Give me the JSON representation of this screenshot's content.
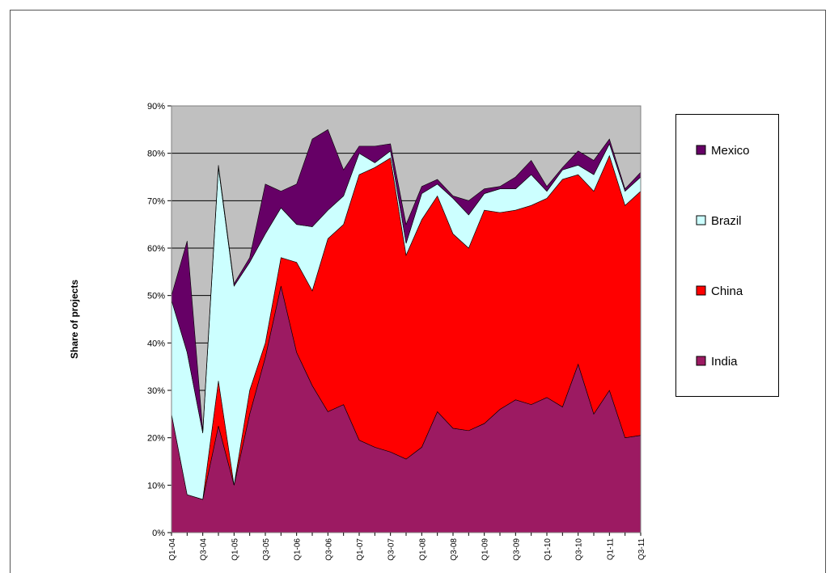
{
  "chart_data": {
    "type": "stacked_area",
    "y_label": "Share of projects",
    "categories": [
      "Q1-04",
      null,
      "Q3-04",
      null,
      "Q1-05",
      null,
      "Q3-05",
      null,
      "Q1-06",
      null,
      "Q3-06",
      null,
      "Q1-07",
      null,
      "Q3-07",
      null,
      "Q1-08",
      null,
      "Q3-08",
      null,
      "Q1-09",
      null,
      "Q3-09",
      null,
      "Q1-10",
      null,
      "Q3-10",
      null,
      "Q1-11",
      null,
      "Q3-11"
    ],
    "series": [
      {
        "name": "India",
        "color": "#9c1a62",
        "values": [
          25,
          8,
          7,
          22.5,
          10,
          25,
          37,
          52,
          38,
          31,
          25.5,
          27,
          19.5,
          18,
          17,
          15.5,
          18,
          25.5,
          22,
          21.5,
          23,
          26,
          28,
          27,
          28.5,
          26.5,
          35.5,
          25,
          30,
          20,
          20.5
        ]
      },
      {
        "name": "China",
        "color": "#ff0000",
        "values": [
          0,
          0,
          0,
          9.5,
          0,
          5,
          3,
          6,
          19,
          20,
          36.5,
          38,
          56,
          59,
          62,
          43,
          48,
          45.5,
          41,
          38.5,
          45,
          41.5,
          40,
          42,
          42,
          48,
          40,
          47,
          49.5,
          49,
          51.5
        ]
      },
      {
        "name": "Brazil",
        "color": "#ccffff",
        "values": [
          24,
          30,
          14,
          45,
          42,
          27,
          23,
          10.5,
          8,
          13.5,
          6,
          6,
          4.5,
          1,
          1.5,
          2.5,
          5.5,
          2.5,
          7.5,
          7,
          3.5,
          5,
          4.5,
          6.5,
          1.5,
          2,
          2,
          3.5,
          2.5,
          3,
          3
        ]
      },
      {
        "name": "Mexico",
        "color": "#660066",
        "values": [
          1,
          23.5,
          0.5,
          0.5,
          0.5,
          1,
          10.5,
          3.5,
          8.5,
          18.5,
          17,
          5.5,
          1.5,
          3.5,
          1.5,
          4,
          1.5,
          1,
          0.5,
          3,
          1,
          0.5,
          2.5,
          3,
          1,
          0.5,
          3,
          3,
          1,
          0.5,
          1
        ]
      }
    ],
    "ylim": [
      0,
      90
    ],
    "yticks": [
      {
        "value": 0,
        "label": "0%"
      },
      {
        "value": 10,
        "label": "10%"
      },
      {
        "value": 20,
        "label": "20%"
      },
      {
        "value": 30,
        "label": "30%"
      },
      {
        "value": 40,
        "label": "40%"
      },
      {
        "value": 50,
        "label": "50%"
      },
      {
        "value": 60,
        "label": "60%"
      },
      {
        "value": 70,
        "label": "70%"
      },
      {
        "value": 80,
        "label": "80%"
      },
      {
        "value": 90,
        "label": "90%"
      }
    ],
    "grid": true,
    "plot_background": "#c0c0c0",
    "legend": "right"
  }
}
